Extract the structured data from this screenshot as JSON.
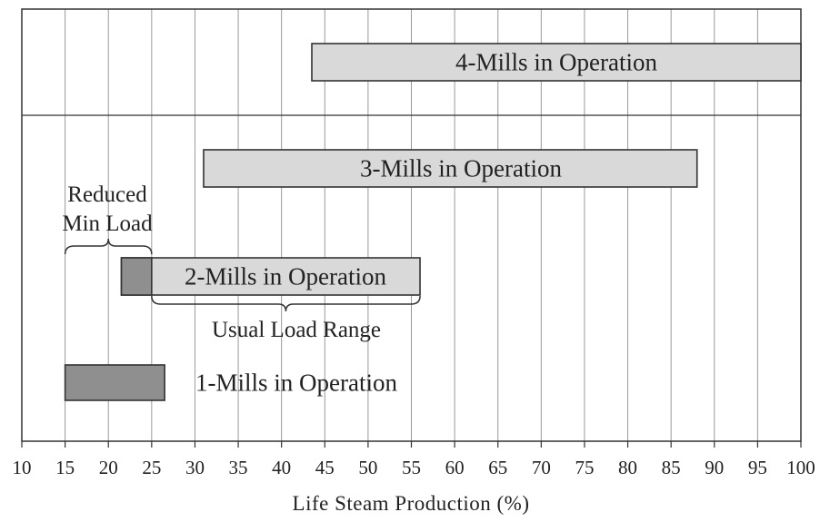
{
  "chart_data": {
    "type": "bar",
    "orientation": "horizontal-range",
    "xlabel": "Life Steam Production (%)",
    "xlim": [
      10,
      100
    ],
    "ticks": [
      "10",
      "15",
      "20",
      "25",
      "30",
      "35",
      "40",
      "45",
      "50",
      "55",
      "60",
      "65",
      "70",
      "75",
      "80",
      "85",
      "90",
      "95",
      "100"
    ],
    "grid": true,
    "series": [
      {
        "label": "4-Mills in Operation",
        "start": 43.5,
        "end": 100,
        "color": "#d9d9d9"
      },
      {
        "label": "3-Mills in Operation",
        "start": 31,
        "end": 88,
        "color": "#d9d9d9"
      },
      {
        "label": "2-Mills in Operation",
        "start": 21.5,
        "end": 56,
        "color": "#d9d9d9",
        "dark_start": 21.5,
        "dark_end": 25,
        "dark_color": "#8f8f8f"
      },
      {
        "label": "1-Mills in Operation",
        "start": 15,
        "end": 26.5,
        "color": "#8f8f8f"
      }
    ],
    "annotations": [
      {
        "lines": [
          "Reduced",
          "Min Load"
        ],
        "from": 15,
        "to": 25
      },
      {
        "lines": [
          "Usual Load Range"
        ],
        "from": 25,
        "to": 56
      }
    ]
  }
}
